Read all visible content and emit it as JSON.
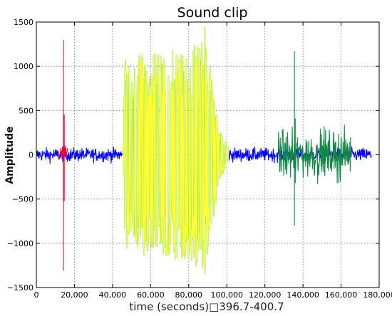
{
  "chart_data": {
    "type": "line",
    "title": "Sound clip",
    "xlabel": "time (seconds)□396.7-400.7",
    "ylabel": "Amplitude",
    "xlim": [
      0,
      180000
    ],
    "ylim": [
      -1500,
      1500
    ],
    "x_ticks": [
      0,
      20000,
      40000,
      60000,
      80000,
      100000,
      120000,
      140000,
      160000,
      180000
    ],
    "x_tick_labels": [
      "0",
      "20,000",
      "40,000",
      "60,000",
      "80,000",
      "100,000",
      "120,000",
      "140,000",
      "160,000",
      "180,000"
    ],
    "y_ticks": [
      -1500,
      -1000,
      -500,
      0,
      500,
      1000,
      1500
    ],
    "y_tick_labels": [
      "−1500",
      "−1000",
      "−500",
      "0",
      "500",
      "1000",
      "1500"
    ],
    "grid": true,
    "legend": "none",
    "series": [
      {
        "color": "#0000ff",
        "segments": [
          {
            "x_range": [
              0,
              45000
            ],
            "noise_amplitude": 100
          },
          {
            "x_range": [
              101000,
              176000
            ],
            "noise_amplitude": 100
          }
        ]
      },
      {
        "color": "#ff0033",
        "segments": [
          {
            "x_range": [
              11500,
              16500
            ],
            "noise_amplitude": 150,
            "spike_x": 14200,
            "spike_max": 1300,
            "spike_min": -1310
          }
        ]
      },
      {
        "color": "#ffff33",
        "edge_color": "#44cc88",
        "segments": [
          {
            "x_range": [
              45500,
              101000
            ],
            "envelope": [
              [
                45500,
                0
              ],
              [
                46500,
                1100
              ],
              [
                60000,
                1150
              ],
              [
                80000,
                1200
              ],
              [
                88000,
                1350
              ],
              [
                92000,
                900
              ],
              [
                96000,
                300
              ],
              [
                100000,
                120
              ],
              [
                101000,
                90
              ]
            ],
            "peak_max": 1450,
            "peak_min": -1350
          }
        ]
      },
      {
        "color": "#118844",
        "segments": [
          {
            "x_range": [
              127000,
              165000
            ],
            "noise_amplitude": 350,
            "spike_x": 135500,
            "spike_max": 1170,
            "spike_min": -800
          }
        ]
      }
    ]
  }
}
